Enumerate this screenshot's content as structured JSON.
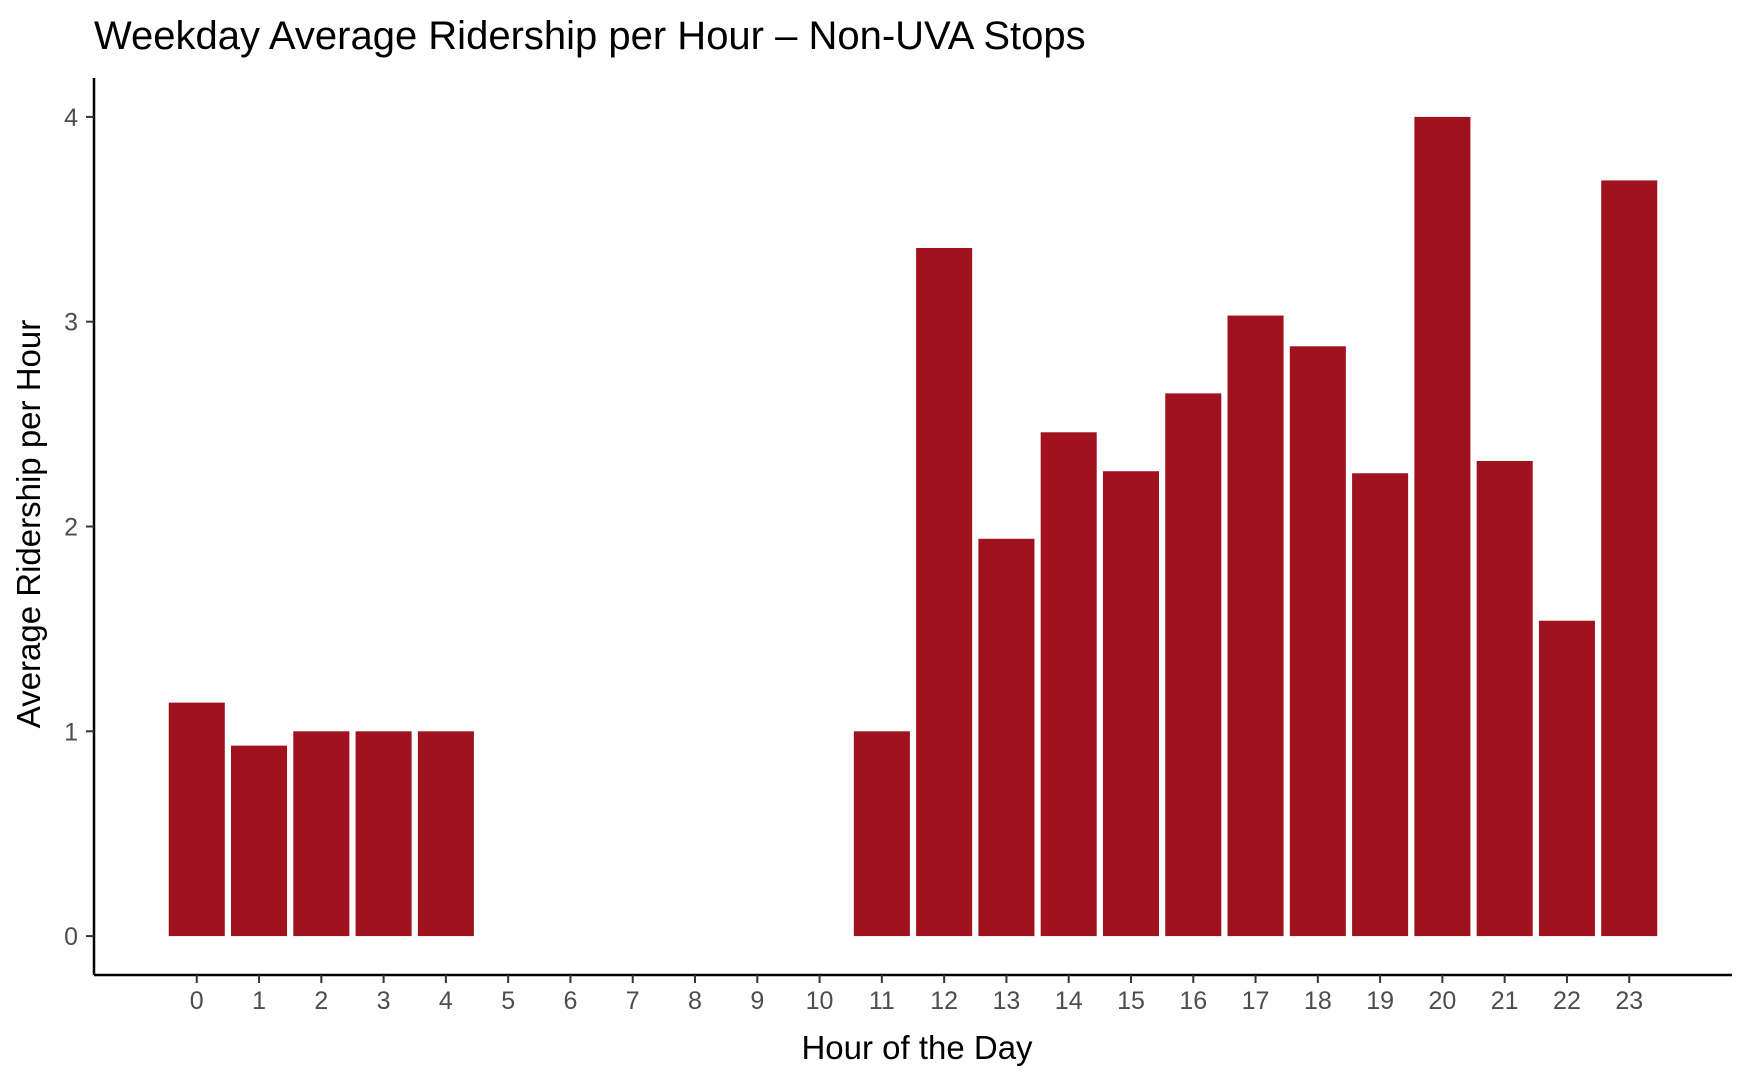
{
  "chart_data": {
    "type": "bar",
    "title": "Weekday Average Ridership per Hour – Non-UVA Stops",
    "xlabel": "Hour of the Day",
    "ylabel": "Average Ridership per Hour",
    "categories": [
      "0",
      "1",
      "2",
      "3",
      "4",
      "5",
      "6",
      "7",
      "8",
      "9",
      "10",
      "11",
      "12",
      "13",
      "14",
      "15",
      "16",
      "17",
      "18",
      "19",
      "20",
      "21",
      "22",
      "23"
    ],
    "values": [
      1.14,
      0.93,
      1.0,
      1.0,
      1.0,
      null,
      null,
      null,
      null,
      null,
      null,
      1.0,
      3.36,
      1.94,
      2.46,
      2.27,
      2.65,
      3.03,
      2.88,
      2.26,
      4.0,
      2.32,
      1.54,
      3.69
    ],
    "ylim": [
      -0.19,
      4.19
    ],
    "xlim": [
      -1.65,
      24.65
    ],
    "yticks": [
      0,
      1,
      2,
      3,
      4
    ],
    "bar_color": "#A0121D",
    "grid": false,
    "legend": "none"
  }
}
